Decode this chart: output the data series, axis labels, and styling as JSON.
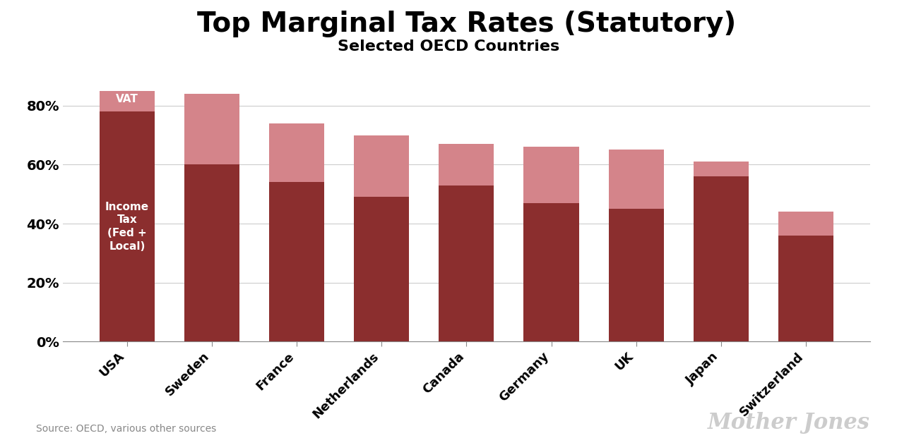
{
  "title": "Top Marginal Tax Rates (Statutory)",
  "subtitle": "Selected OECD Countries",
  "countries": [
    "USA",
    "Sweden",
    "France",
    "Netherlands",
    "Canada",
    "Germany",
    "UK",
    "Japan",
    "Switzerland"
  ],
  "income_tax": [
    78,
    60,
    54,
    49,
    53,
    47,
    45,
    56,
    36
  ],
  "vat": [
    7,
    24,
    20,
    21,
    14,
    19,
    20,
    5,
    8
  ],
  "income_tax_color": "#8B2E2E",
  "vat_color": "#D4848A",
  "background_color": "#FFFFFF",
  "ylabel_ticks": [
    0,
    20,
    40,
    60,
    80
  ],
  "source_text": "Source: OECD, various other sources",
  "watermark": "Mother Jones",
  "bar_label_income": "Income\nTax\n(Fed +\nLocal)",
  "bar_label_vat": "VAT",
  "title_fontsize": 28,
  "subtitle_fontsize": 16,
  "tick_fontsize": 14,
  "xlabel_fontsize": 13,
  "ylim_max": 95,
  "bar_width": 0.65
}
